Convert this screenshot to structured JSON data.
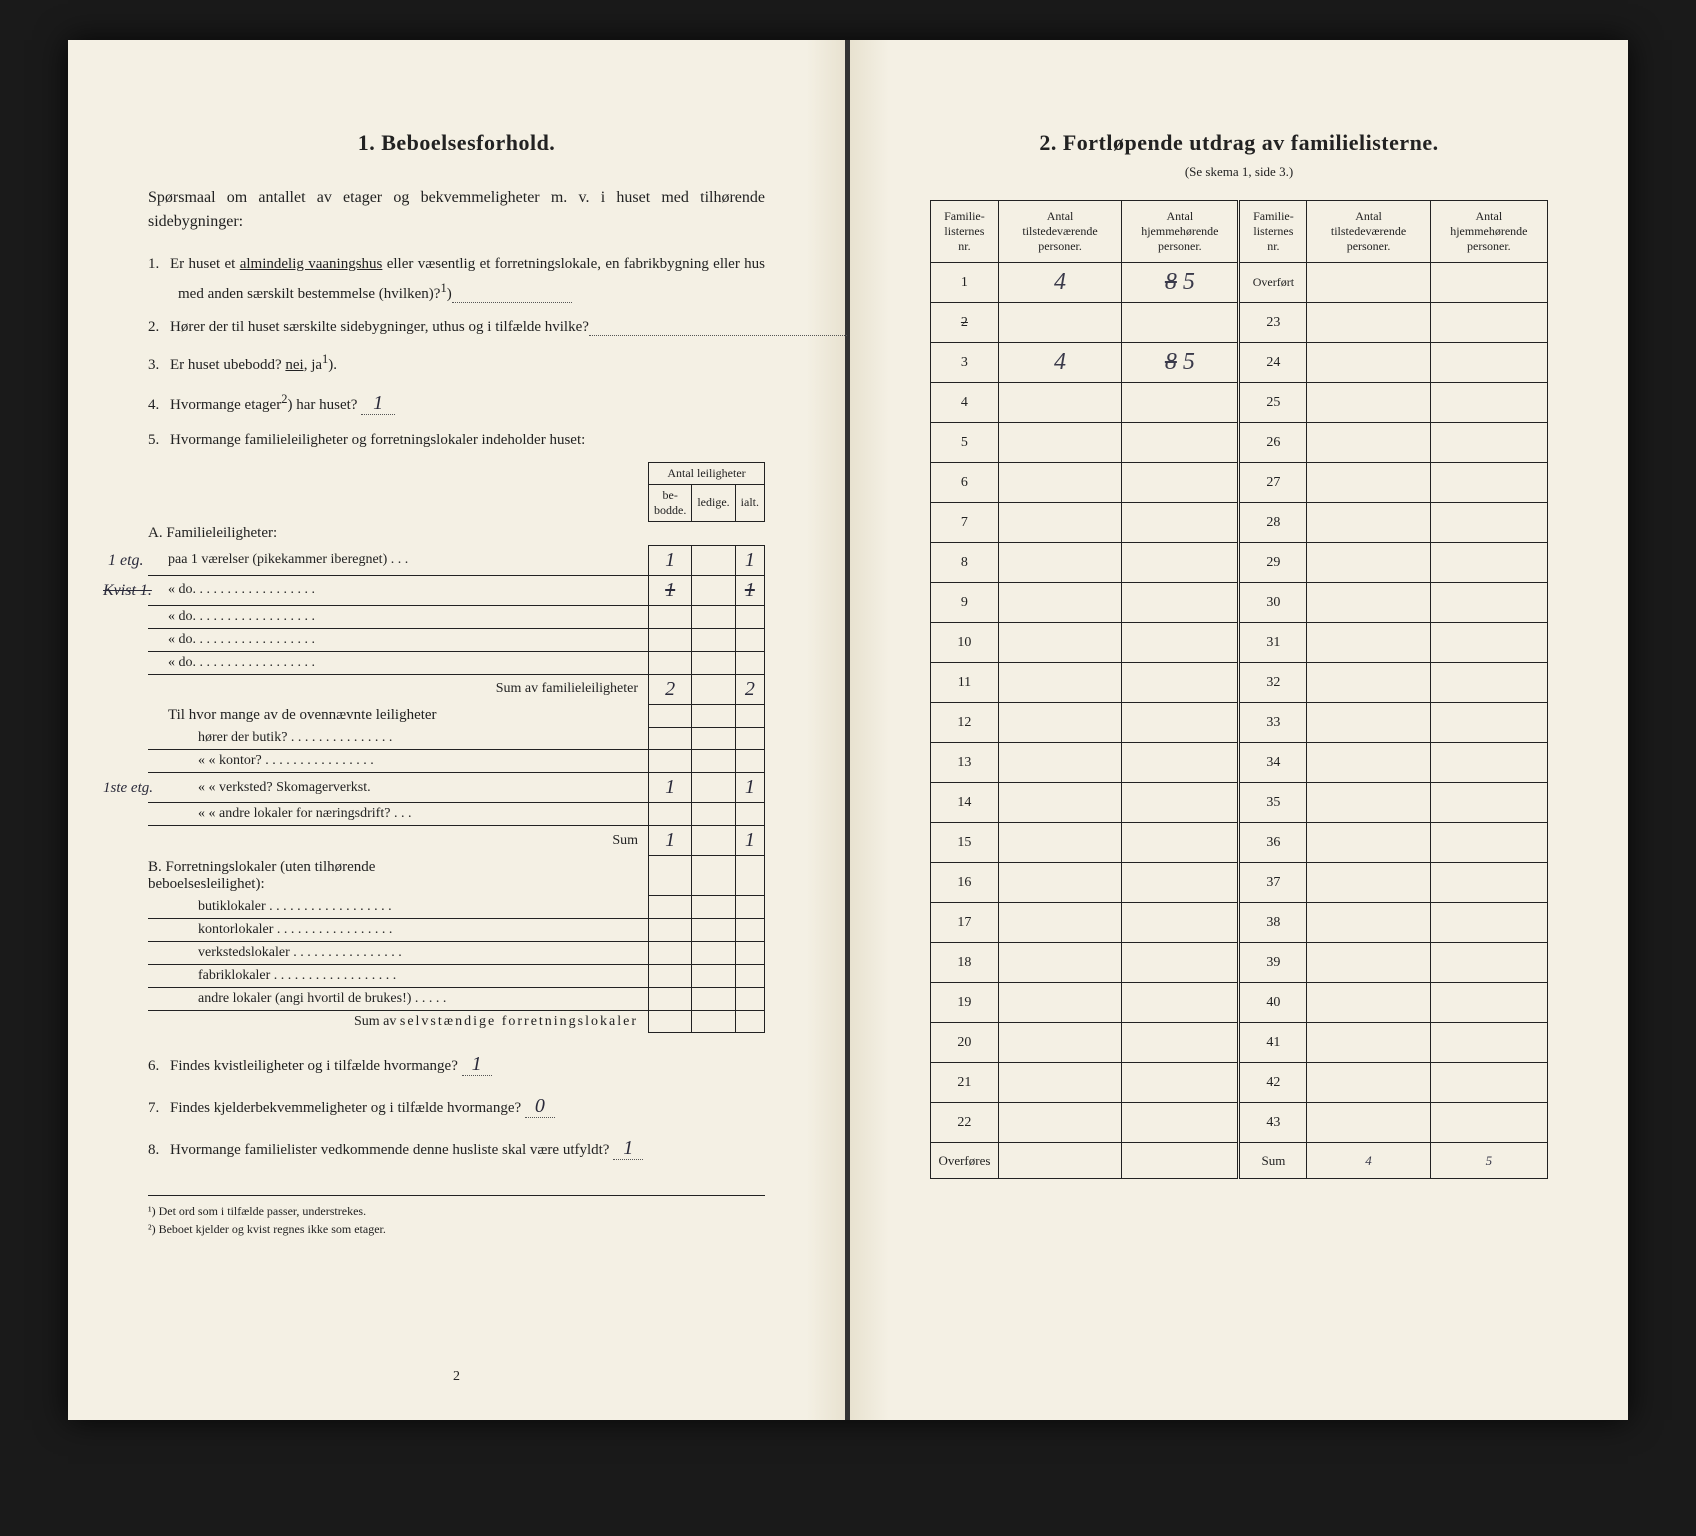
{
  "leftPage": {
    "heading": "1.  Beboelsesforhold.",
    "intro": "Spørsmaal om antallet av etager og bekvemmeligheter m. v. i huset med tilhørende sidebygninger:",
    "q1": {
      "num": "1.",
      "text_a": "Er huset et ",
      "underlined": "almindelig vaaningshus",
      "text_b": " eller væsentlig et forretningslokale, en fabrikbygning eller hus med anden særskilt bestemmelse (hvilken)?",
      "sup": "1",
      "close": ")"
    },
    "q2": {
      "num": "2.",
      "text": "Hører der til huset særskilte sidebygninger, uthus og i tilfælde hvilke?"
    },
    "q3": {
      "num": "3.",
      "text_a": "Er huset ubebodd?  ",
      "nei": "nei,",
      "ja": "ja",
      "sup": "1",
      "close": ")."
    },
    "q4": {
      "num": "4.",
      "text_a": "Hvormange etager",
      "sup": "2",
      "text_b": ") har huset?",
      "answer": "1"
    },
    "q5": {
      "num": "5.",
      "text": "Hvormange familieleiligheter og forretningslokaler indeholder huset:"
    },
    "table": {
      "header_group": "Antal leiligheter",
      "header_cols": [
        "be-\nbodde.",
        "ledige.",
        "ialt."
      ],
      "sectionA": "A. Familieleiligheter:",
      "rowA1": {
        "margin": "1 etg.",
        "label": "paa    1    værelser (pikekammer iberegnet) . . .",
        "c1": "1",
        "c2": "",
        "c3": "1"
      },
      "rowA2": {
        "margin": "Kvist   1.",
        "label": "«            do.   . . . . . . . . . . . . . . . . .",
        "c1": "1",
        "c2": "",
        "c3": "1"
      },
      "rowA3": {
        "label": "«            do.   . . . . . . . . . . . . . . . . .",
        "c1": "",
        "c2": "",
        "c3": ""
      },
      "rowA4": {
        "label": "«            do.   . . . . . . . . . . . . . . . . .",
        "c1": "",
        "c2": "",
        "c3": ""
      },
      "rowA5": {
        "label": "«            do.   . . . . . . . . . . . . . . . . .",
        "c1": "",
        "c2": "",
        "c3": ""
      },
      "sumA": {
        "label": "Sum av familieleiligheter",
        "c1": "2",
        "c2": "",
        "c3": "2"
      },
      "extra_intro": "Til hvor mange av de ovennævnte leiligheter",
      "rowE1": {
        "label": "hører der butik? . . . . . . . . . . . . . . .",
        "c1": "",
        "c2": "",
        "c3": ""
      },
      "rowE2": {
        "label": "«    «   kontor? . . . . . . . . . . . . . . . .",
        "c1": "",
        "c2": "",
        "c3": ""
      },
      "rowE3": {
        "margin": "1ste etg.",
        "label": "«    «   verksted?  Skomagerverkst.",
        "c1": "1",
        "c2": "",
        "c3": "1"
      },
      "rowE4": {
        "label": "«    «   andre lokaler for næringsdrift? . . .",
        "c1": "",
        "c2": "",
        "c3": ""
      },
      "sumE": {
        "label": "Sum",
        "c1": "1",
        "c2": "",
        "c3": "1"
      },
      "sectionB": "B. Forretningslokaler (uten tilhørende beboelsesleilighet):",
      "rowB1": {
        "label": "butiklokaler . . . . . . . . . . . . . . . . . .",
        "c1": "",
        "c2": "",
        "c3": ""
      },
      "rowB2": {
        "label": "kontorlokaler  . . . . . . . . . . . . . . . . .",
        "c1": "",
        "c2": "",
        "c3": ""
      },
      "rowB3": {
        "label": "verkstedslokaler . . . . . . . . . . . . . . . .",
        "c1": "",
        "c2": "",
        "c3": ""
      },
      "rowB4": {
        "label": "fabriklokaler . . . . . . . . . . . . . . . . . .",
        "c1": "",
        "c2": "",
        "c3": ""
      },
      "rowB5": {
        "label": "andre lokaler (angi hvortil de brukes!) . . . . .",
        "c1": "",
        "c2": "",
        "c3": ""
      },
      "sumB": {
        "label_a": "Sum av ",
        "label_spaced": "selvstændige forretningslokaler",
        "c1": "",
        "c2": "",
        "c3": ""
      }
    },
    "q6": {
      "num": "6.",
      "text": "Findes kvistleiligheter og i tilfælde hvormange?",
      "answer": "1"
    },
    "q7": {
      "num": "7.",
      "text": "Findes kjelderbekvemmeligheter og i tilfælde hvormange?",
      "answer": "0"
    },
    "q8": {
      "num": "8.",
      "text": "Hvormange familielister vedkommende denne husliste skal være utfyldt?",
      "answer": "1"
    },
    "footnotes": {
      "f1": "¹)  Det ord som i tilfælde passer, understrekes.",
      "f2": "²)  Beboet kjelder og kvist regnes ikke som etager."
    },
    "pageNum": "2"
  },
  "rightPage": {
    "heading": "2.  Fortløpende utdrag av familielisterne.",
    "subheading": "(Se skema 1, side 3.)",
    "headers": {
      "c1": "Familie-\nlisternes\nnr.",
      "c2": "Antal\ntilstedeværende\npersoner.",
      "c3": "Antal\nhjemmehørende\npersoner.",
      "c4": "Familie-\nlisternes\nnr.",
      "c5": "Antal\ntilstedeværende\npersoner.",
      "c6": "Antal\nhjemmehørende\npersoner."
    },
    "rows_left": [
      {
        "n": "1",
        "c2": "4",
        "c3": "8 5",
        "strike": false
      },
      {
        "n": "2",
        "c2": "",
        "c3": "",
        "strike": true
      },
      {
        "n": "3",
        "c2": "4",
        "c3": "8 5",
        "strike": false
      },
      {
        "n": "4"
      },
      {
        "n": "5"
      },
      {
        "n": "6"
      },
      {
        "n": "7"
      },
      {
        "n": "8"
      },
      {
        "n": "9"
      },
      {
        "n": "10"
      },
      {
        "n": "11"
      },
      {
        "n": "12"
      },
      {
        "n": "13"
      },
      {
        "n": "14"
      },
      {
        "n": "15"
      },
      {
        "n": "16"
      },
      {
        "n": "17"
      },
      {
        "n": "18"
      },
      {
        "n": "19"
      },
      {
        "n": "20"
      },
      {
        "n": "21"
      },
      {
        "n": "22"
      }
    ],
    "rows_right_first": "Overført",
    "rows_right_start": 23,
    "rows_right_end": 43,
    "footer_left": "Overføres",
    "footer_right": "Sum",
    "footer_sum_c2": "4",
    "footer_sum_c3": "5"
  },
  "colors": {
    "paper": "#f4f0e4",
    "ink": "#222222",
    "handwriting": "#3a3a4a",
    "background": "#1a1a1a"
  }
}
